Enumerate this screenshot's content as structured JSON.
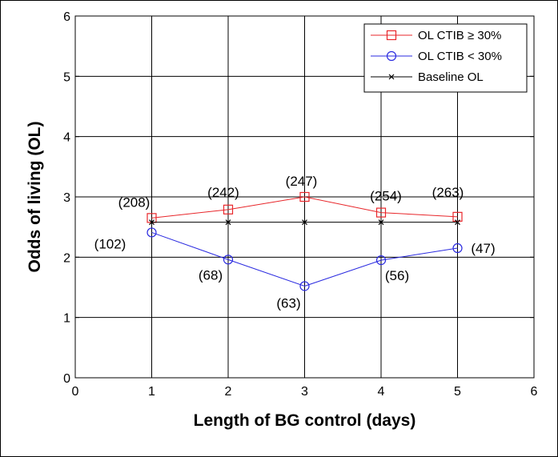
{
  "chart_data": {
    "type": "line",
    "xlabel": "Length of BG control (days)",
    "ylabel": "Odds of living (OL)",
    "xlim": [
      0,
      6
    ],
    "ylim": [
      0,
      6
    ],
    "xticks": [
      "0",
      "1",
      "2",
      "3",
      "4",
      "5",
      "6"
    ],
    "yticks": [
      "0",
      "1",
      "2",
      "3",
      "4",
      "5",
      "6"
    ],
    "grid": true,
    "legend_position": "top-right",
    "series": [
      {
        "name": "OL CTIB ≥ 30%",
        "color": "#e8262a",
        "marker": "square",
        "x": [
          1,
          2,
          3,
          4,
          5
        ],
        "y": [
          2.65,
          2.79,
          3.0,
          2.74,
          2.67
        ],
        "labels": [
          "(208)",
          "(242)",
          "(247)",
          "(254)",
          "(263)"
        ]
      },
      {
        "name": "OL CTIB < 30%",
        "color": "#2a2ae0",
        "marker": "circle",
        "x": [
          1,
          2,
          3,
          4,
          5
        ],
        "y": [
          2.41,
          1.96,
          1.52,
          1.95,
          2.15
        ],
        "labels": [
          "(102)",
          "(68)",
          "(63)",
          "(56)",
          "(47)"
        ]
      },
      {
        "name": "Baseline OL",
        "color": "#000000",
        "marker": "x",
        "x": [
          1,
          2,
          3,
          4,
          5
        ],
        "y": [
          2.58,
          2.58,
          2.58,
          2.58,
          2.58
        ]
      }
    ]
  }
}
